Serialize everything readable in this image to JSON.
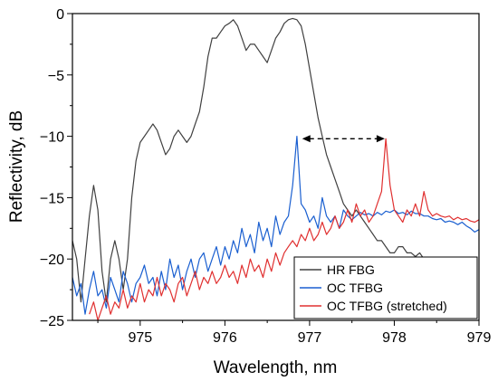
{
  "chart_data": {
    "type": "line",
    "xlabel": "Wavelength, nm",
    "ylabel": "Reflectivity, dB",
    "xlim": [
      974.2,
      979.0
    ],
    "ylim": [
      -25,
      0
    ],
    "x_ticks": [
      975,
      976,
      977,
      978,
      979
    ],
    "y_ticks": [
      0,
      -5,
      -10,
      -15,
      -20,
      -25
    ],
    "x_tick_labels": [
      "975",
      "976",
      "977",
      "978",
      "979"
    ],
    "y_tick_labels": [
      "0",
      "−5",
      "−10",
      "−15",
      "−20",
      "−25"
    ],
    "legend": {
      "position": "bottom-right"
    },
    "series": [
      {
        "name": "HR FBG",
        "color": "#404040",
        "x": [
          974.2,
          974.25,
          974.3,
          974.35,
          974.4,
          974.45,
          974.5,
          974.55,
          974.6,
          974.65,
          974.7,
          974.75,
          974.8,
          974.85,
          974.9,
          974.95,
          975.0,
          975.05,
          975.1,
          975.15,
          975.2,
          975.25,
          975.3,
          975.35,
          975.4,
          975.45,
          975.5,
          975.55,
          975.6,
          975.65,
          975.7,
          975.75,
          975.8,
          975.85,
          975.9,
          975.95,
          976.0,
          976.05,
          976.1,
          976.15,
          976.2,
          976.25,
          976.3,
          976.35,
          976.4,
          976.45,
          976.5,
          976.55,
          976.6,
          976.65,
          976.7,
          976.75,
          976.8,
          976.85,
          976.9,
          976.95,
          977.0,
          977.05,
          977.1,
          977.15,
          977.2,
          977.25,
          977.3,
          977.35,
          977.4,
          977.45,
          977.5,
          977.55,
          977.6,
          977.65,
          977.7,
          977.75,
          977.8,
          977.85,
          977.9,
          977.95,
          978.0,
          978.05,
          978.1,
          978.15,
          978.2,
          978.25,
          978.3,
          978.35,
          978.4,
          978.45
        ],
        "y": [
          -18.5,
          -20.0,
          -23.5,
          -20.0,
          -16.5,
          -14.0,
          -16.0,
          -21.0,
          -23.5,
          -20.0,
          -18.5,
          -20.0,
          -22.5,
          -20.0,
          -15.0,
          -12.0,
          -10.5,
          -10.0,
          -9.5,
          -9.0,
          -9.5,
          -10.5,
          -11.5,
          -11.0,
          -10.0,
          -9.5,
          -10.0,
          -10.5,
          -10.0,
          -9.0,
          -8.0,
          -6.0,
          -3.5,
          -2.0,
          -2.0,
          -1.5,
          -1.0,
          -0.8,
          -0.5,
          -1.0,
          -2.0,
          -3.0,
          -2.5,
          -2.5,
          -3.0,
          -3.5,
          -4.0,
          -3.0,
          -2.0,
          -1.5,
          -0.8,
          -0.5,
          -0.4,
          -0.5,
          -1.0,
          -2.5,
          -4.5,
          -6.5,
          -8.5,
          -10.0,
          -11.5,
          -12.5,
          -13.5,
          -14.5,
          -15.5,
          -16.0,
          -16.5,
          -16.0,
          -16.5,
          -17.0,
          -17.5,
          -18.0,
          -18.5,
          -18.5,
          -19.0,
          -19.5,
          -19.5,
          -19.0,
          -19.0,
          -19.5,
          -19.5,
          -19.8,
          -19.5,
          -20.0,
          -20.0,
          -20.3
        ]
      },
      {
        "name": "OC TFBG",
        "color": "#1a5fd0",
        "x": [
          974.2,
          974.25,
          974.3,
          974.35,
          974.4,
          974.45,
          974.5,
          974.55,
          974.6,
          974.65,
          974.7,
          974.75,
          974.8,
          974.85,
          974.9,
          974.95,
          975.0,
          975.05,
          975.1,
          975.15,
          975.2,
          975.25,
          975.3,
          975.35,
          975.4,
          975.45,
          975.5,
          975.55,
          975.6,
          975.65,
          975.7,
          975.75,
          975.8,
          975.85,
          975.9,
          975.95,
          976.0,
          976.05,
          976.1,
          976.15,
          976.2,
          976.25,
          976.3,
          976.35,
          976.4,
          976.45,
          976.5,
          976.55,
          976.6,
          976.65,
          976.7,
          976.75,
          976.8,
          976.85,
          976.9,
          976.95,
          977.0,
          977.05,
          977.1,
          977.15,
          977.2,
          977.25,
          977.3,
          977.35,
          977.4,
          977.45,
          977.5,
          977.55,
          977.6,
          977.65,
          977.7,
          977.75,
          977.8,
          977.85,
          977.9,
          977.95,
          978.0,
          978.05,
          978.1,
          978.15,
          978.2,
          978.25,
          978.3,
          978.35,
          978.4,
          978.45,
          978.5,
          978.55,
          978.6,
          978.65,
          978.7,
          978.75,
          978.8,
          978.85,
          978.9,
          978.95,
          979.0
        ],
        "y": [
          -21.5,
          -23.0,
          -22.0,
          -24.5,
          -22.5,
          -21.0,
          -23.0,
          -22.5,
          -24.0,
          -21.5,
          -22.5,
          -23.5,
          -21.0,
          -22.0,
          -23.5,
          -22.0,
          -21.5,
          -20.5,
          -22.0,
          -21.5,
          -23.0,
          -21.0,
          -22.5,
          -20.0,
          -21.5,
          -20.5,
          -22.5,
          -21.0,
          -20.0,
          -21.5,
          -20.0,
          -19.5,
          -21.0,
          -20.0,
          -19.0,
          -20.5,
          -19.0,
          -20.0,
          -18.5,
          -19.5,
          -17.5,
          -19.0,
          -18.0,
          -19.5,
          -17.0,
          -18.5,
          -17.5,
          -19.0,
          -16.5,
          -18.0,
          -17.0,
          -16.5,
          -14.0,
          -10.0,
          -15.5,
          -16.0,
          -17.0,
          -16.5,
          -17.5,
          -15.0,
          -16.5,
          -17.0,
          -16.5,
          -17.5,
          -16.0,
          -16.5,
          -16.8,
          -16.5,
          -16.2,
          -16.4,
          -16.3,
          -16.5,
          -16.2,
          -16.4,
          -16.1,
          -16.2,
          -16.0,
          -16.3,
          -16.2,
          -16.4,
          -16.1,
          -16.3,
          -16.3,
          -16.5,
          -16.5,
          -16.7,
          -16.8,
          -16.7,
          -17.0,
          -16.9,
          -17.0,
          -17.2,
          -17.0,
          -17.3,
          -17.5,
          -17.8,
          -17.6
        ]
      },
      {
        "name": "OC TFBG (stretched)",
        "color": "#e03030",
        "x": [
          974.4,
          974.45,
          974.5,
          974.55,
          974.6,
          974.65,
          974.7,
          974.75,
          974.8,
          974.85,
          974.9,
          974.95,
          975.0,
          975.05,
          975.1,
          975.15,
          975.2,
          975.25,
          975.3,
          975.35,
          975.4,
          975.45,
          975.5,
          975.55,
          975.6,
          975.65,
          975.7,
          975.75,
          975.8,
          975.85,
          975.9,
          975.95,
          976.0,
          976.05,
          976.1,
          976.15,
          976.2,
          976.25,
          976.3,
          976.35,
          976.4,
          976.45,
          976.5,
          976.55,
          976.6,
          976.65,
          976.7,
          976.75,
          976.8,
          976.85,
          976.9,
          976.95,
          977.0,
          977.05,
          977.1,
          977.15,
          977.2,
          977.25,
          977.3,
          977.35,
          977.4,
          977.45,
          977.5,
          977.55,
          977.6,
          977.65,
          977.7,
          977.75,
          977.8,
          977.85,
          977.9,
          977.95,
          978.0,
          978.05,
          978.1,
          978.15,
          978.2,
          978.25,
          978.3,
          978.35,
          978.4,
          978.45,
          978.5,
          978.55,
          978.6,
          978.65,
          978.7,
          978.75,
          978.8,
          978.85,
          978.9,
          978.95,
          979.0
        ],
        "y": [
          -24.5,
          -23.5,
          -25.0,
          -24.0,
          -23.0,
          -24.5,
          -23.5,
          -24.0,
          -22.5,
          -24.0,
          -23.0,
          -23.5,
          -22.0,
          -23.5,
          -22.5,
          -23.0,
          -21.5,
          -23.0,
          -22.0,
          -22.5,
          -23.5,
          -22.0,
          -21.5,
          -23.0,
          -22.0,
          -21.0,
          -22.5,
          -21.5,
          -22.0,
          -21.0,
          -22.0,
          -21.5,
          -20.5,
          -21.5,
          -21.0,
          -22.0,
          -20.5,
          -21.5,
          -20.0,
          -21.0,
          -20.5,
          -21.5,
          -20.0,
          -21.0,
          -19.5,
          -20.5,
          -19.5,
          -19.0,
          -18.5,
          -19.0,
          -18.0,
          -18.5,
          -17.5,
          -18.5,
          -18.0,
          -17.0,
          -18.0,
          -17.5,
          -16.5,
          -17.5,
          -17.0,
          -16.0,
          -17.0,
          -15.5,
          -16.5,
          -16.0,
          -17.0,
          -16.5,
          -15.5,
          -14.5,
          -10.2,
          -14.0,
          -16.0,
          -16.5,
          -17.0,
          -16.0,
          -16.5,
          -15.5,
          -16.5,
          -14.5,
          -16.0,
          -16.5,
          -16.3,
          -16.5,
          -16.6,
          -16.5,
          -16.8,
          -16.6,
          -16.8,
          -16.7,
          -16.9,
          -17.0,
          -16.8
        ]
      }
    ],
    "annotations": [
      {
        "type": "double-arrow",
        "style": "dashed",
        "x_from": 976.87,
        "x_to": 977.93,
        "y": -10.2
      }
    ]
  }
}
